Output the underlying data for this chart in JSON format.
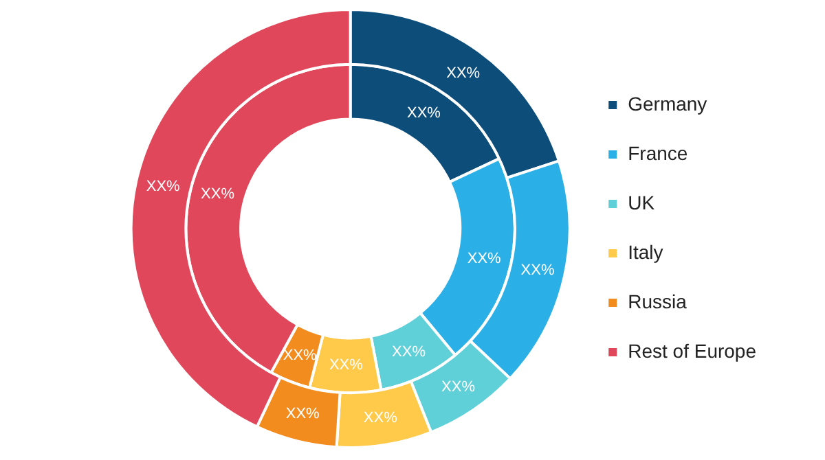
{
  "chart_data": {
    "type": "donut",
    "categories": [
      "Germany",
      "France",
      "UK",
      "Italy",
      "Russia",
      "Rest of Europe"
    ],
    "series": [
      {
        "colors": [
          "#0d4d7a",
          "#2ab0e6",
          "#5fd0d8",
          "#ffc94a",
          "#f28c1e",
          "#e0475b"
        ],
        "values": [
          20,
          17,
          7,
          7,
          6,
          43
        ],
        "value_labels": [
          "XX%",
          "XX%",
          "XX%",
          "XX%",
          "XX%",
          "XX%"
        ]
      },
      {
        "colors": [
          "#0d4d7a",
          "#2ab0e6",
          "#5fd0d8",
          "#ffc94a",
          "#f28c1e",
          "#e0475b"
        ],
        "values": [
          18,
          21,
          8,
          7,
          4,
          42
        ],
        "value_labels": [
          "XX%",
          "XX%",
          "XX%",
          "XX%",
          "XX%",
          "XX%"
        ]
      }
    ],
    "legend": "right"
  }
}
